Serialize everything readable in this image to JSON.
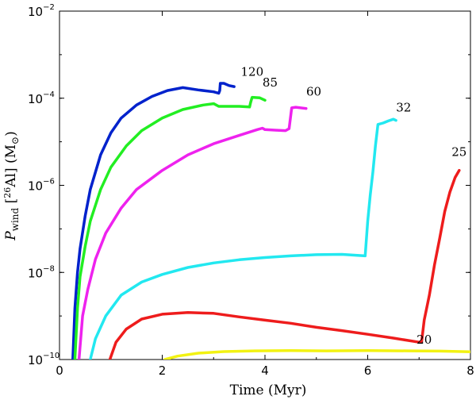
{
  "chart_data": {
    "type": "line",
    "title": "",
    "xlabel": "Time (Myr)",
    "ylabel_parts": {
      "base": "P",
      "sub": "wind",
      "iso_mass": "26",
      "iso": "Al",
      "unit": "(M",
      "unit_sym": "⊙",
      "unit_close": ")"
    },
    "xlim": [
      0,
      8
    ],
    "ylim": [
      1e-10,
      0.01
    ],
    "yscale": "log",
    "xticks": [
      0,
      2,
      4,
      6,
      8
    ],
    "yticks": [
      {
        "value": 1e-10,
        "base": "10",
        "exp": "−10"
      },
      {
        "value": 1e-08,
        "base": "10",
        "exp": "−8"
      },
      {
        "value": 1e-06,
        "base": "10",
        "exp": "−6"
      },
      {
        "value": 0.0001,
        "base": "10",
        "exp": "−4"
      },
      {
        "value": 0.01,
        "base": "10",
        "exp": "−2"
      }
    ],
    "grid": false,
    "series": [
      {
        "name": "120",
        "color": "#0022cc",
        "label": "120",
        "label_at": [
          3.75,
          0.00033
        ],
        "points": [
          [
            0.26,
            1e-10
          ],
          [
            0.3,
            1.5e-09
          ],
          [
            0.35,
            1e-08
          ],
          [
            0.4,
            3.5e-08
          ],
          [
            0.5,
            2e-07
          ],
          [
            0.6,
            8e-07
          ],
          [
            0.8,
            5e-06
          ],
          [
            1.0,
            1.6e-05
          ],
          [
            1.2,
            3.5e-05
          ],
          [
            1.5,
            7e-05
          ],
          [
            1.8,
            0.00011
          ],
          [
            2.1,
            0.00015
          ],
          [
            2.4,
            0.000175
          ],
          [
            2.7,
            0.000155
          ],
          [
            3.0,
            0.00014
          ],
          [
            3.1,
            0.00013
          ],
          [
            3.12,
            0.00015
          ],
          [
            3.13,
            0.00022
          ],
          [
            3.2,
            0.00022
          ],
          [
            3.3,
            0.000195
          ],
          [
            3.4,
            0.000185
          ]
        ]
      },
      {
        "name": "85",
        "color": "#22ee22",
        "label": "85",
        "label_at": [
          4.1,
          0.000185
        ],
        "points": [
          [
            0.3,
            1e-10
          ],
          [
            0.35,
            1.5e-09
          ],
          [
            0.4,
            8e-09
          ],
          [
            0.5,
            4e-08
          ],
          [
            0.6,
            1.5e-07
          ],
          [
            0.8,
            8e-07
          ],
          [
            1.0,
            2.6e-06
          ],
          [
            1.3,
            8e-06
          ],
          [
            1.6,
            1.8e-05
          ],
          [
            2.0,
            3.5e-05
          ],
          [
            2.4,
            5.5e-05
          ],
          [
            2.8,
            7e-05
          ],
          [
            3.0,
            7.5e-05
          ],
          [
            3.1,
            6.5e-05
          ],
          [
            3.5,
            6.5e-05
          ],
          [
            3.7,
            6.3e-05
          ],
          [
            3.72,
            8e-05
          ],
          [
            3.75,
            0.000105
          ],
          [
            3.9,
            0.000102
          ],
          [
            4.0,
            9e-05
          ]
        ]
      },
      {
        "name": "60",
        "color": "#ee22ee",
        "label": "60",
        "label_at": [
          4.95,
          0.000115
        ],
        "points": [
          [
            0.38,
            1e-10
          ],
          [
            0.45,
            1e-09
          ],
          [
            0.55,
            4e-09
          ],
          [
            0.7,
            2e-08
          ],
          [
            0.9,
            8e-08
          ],
          [
            1.2,
            3e-07
          ],
          [
            1.5,
            8e-07
          ],
          [
            2.0,
            2.2e-06
          ],
          [
            2.5,
            5e-06
          ],
          [
            3.0,
            9e-06
          ],
          [
            3.5,
            1.4e-05
          ],
          [
            3.85,
            1.9e-05
          ],
          [
            3.95,
            2.05e-05
          ],
          [
            4.0,
            1.9e-05
          ],
          [
            4.2,
            1.85e-05
          ],
          [
            4.4,
            1.8e-05
          ],
          [
            4.47,
            2e-05
          ],
          [
            4.52,
            6e-05
          ],
          [
            4.6,
            6.2e-05
          ],
          [
            4.8,
            5.8e-05
          ]
        ]
      },
      {
        "name": "32",
        "color": "#22e8f0",
        "label": "32",
        "label_at": [
          6.7,
          5e-05
        ],
        "points": [
          [
            0.6,
            1e-10
          ],
          [
            0.7,
            3e-10
          ],
          [
            0.9,
            1e-09
          ],
          [
            1.2,
            3e-09
          ],
          [
            1.6,
            6e-09
          ],
          [
            2.0,
            9e-09
          ],
          [
            2.5,
            1.3e-08
          ],
          [
            3.0,
            1.65e-08
          ],
          [
            3.5,
            1.95e-08
          ],
          [
            4.0,
            2.2e-08
          ],
          [
            4.5,
            2.4e-08
          ],
          [
            5.0,
            2.55e-08
          ],
          [
            5.5,
            2.6e-08
          ],
          [
            5.95,
            2.4e-08
          ],
          [
            6.0,
            1.5e-07
          ],
          [
            6.05,
            6e-07
          ],
          [
            6.1,
            2e-06
          ],
          [
            6.15,
            8e-06
          ],
          [
            6.2,
            2.5e-05
          ],
          [
            6.3,
            2.7e-05
          ],
          [
            6.4,
            3e-05
          ],
          [
            6.5,
            3.3e-05
          ],
          [
            6.55,
            3.1e-05
          ]
        ]
      },
      {
        "name": "25",
        "color": "#ee1c1c",
        "label": "25",
        "label_at": [
          7.78,
          4.7e-06
        ],
        "points": [
          [
            0.98,
            1e-10
          ],
          [
            1.1,
            2.5e-10
          ],
          [
            1.3,
            5e-10
          ],
          [
            1.6,
            8.5e-10
          ],
          [
            2.0,
            1.1e-09
          ],
          [
            2.5,
            1.2e-09
          ],
          [
            3.0,
            1.15e-09
          ],
          [
            3.5,
            9.5e-10
          ],
          [
            4.0,
            8e-10
          ],
          [
            4.5,
            6.8e-10
          ],
          [
            5.0,
            5.5e-10
          ],
          [
            5.5,
            4.6e-10
          ],
          [
            6.0,
            3.8e-10
          ],
          [
            6.5,
            3.1e-10
          ],
          [
            7.0,
            2.5e-10
          ],
          [
            7.05,
            2.6e-10
          ],
          [
            7.1,
            8e-10
          ],
          [
            7.2,
            3e-09
          ],
          [
            7.3,
            1.5e-08
          ],
          [
            7.4,
            6e-08
          ],
          [
            7.5,
            2.5e-07
          ],
          [
            7.6,
            7e-07
          ],
          [
            7.7,
            1.5e-06
          ],
          [
            7.78,
            2.2e-06
          ]
        ]
      },
      {
        "name": "20",
        "color": "#f2f212",
        "label": "20",
        "label_at": [
          7.1,
          2.3e-10
        ],
        "points": [
          [
            2.05,
            1e-10
          ],
          [
            2.3,
            1.2e-10
          ],
          [
            2.7,
            1.4e-10
          ],
          [
            3.2,
            1.52e-10
          ],
          [
            3.8,
            1.58e-10
          ],
          [
            4.5,
            1.6e-10
          ],
          [
            5.2,
            1.58e-10
          ],
          [
            6.0,
            1.6e-10
          ],
          [
            6.8,
            1.58e-10
          ],
          [
            7.4,
            1.56e-10
          ],
          [
            8.0,
            1.5e-10
          ]
        ]
      }
    ]
  }
}
